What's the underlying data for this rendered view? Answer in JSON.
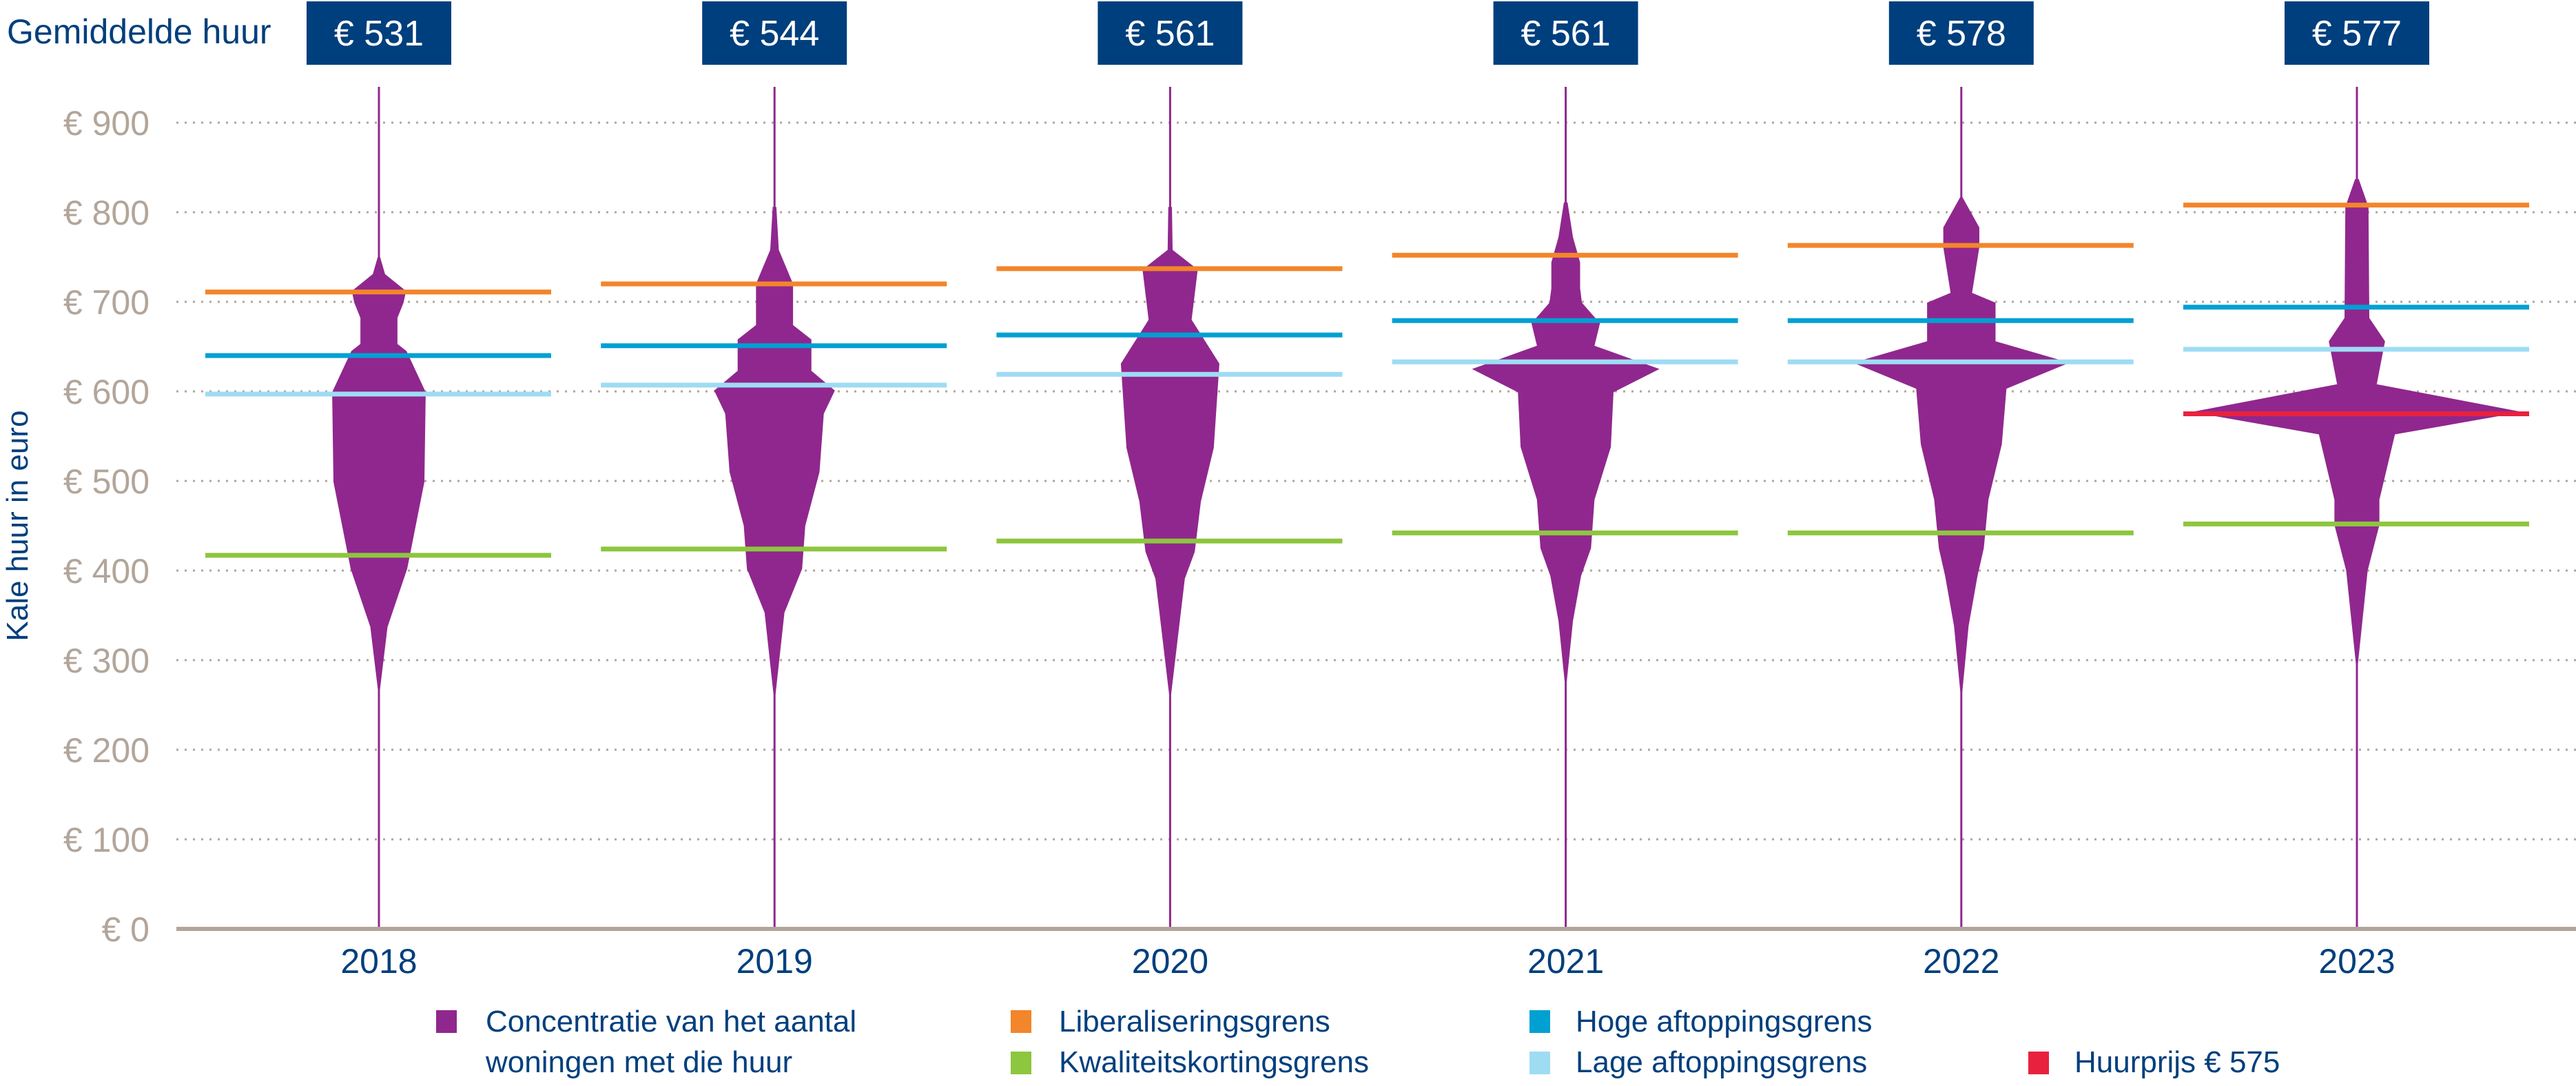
{
  "colors": {
    "violin": "#90278e",
    "liberalisering": "#f3852a",
    "hoge": "#00a0d2",
    "lage": "#9edcf4",
    "kwaliteit": "#8dc63f",
    "huurprijs": "#e8213f",
    "title_blue": "#003f7d",
    "axis_gray": "#b2a59a"
  },
  "chart_data": {
    "type": "violin",
    "title": "",
    "xlabel": "",
    "ylabel": "Kale huur in euro",
    "ylim": [
      0,
      900
    ],
    "yticks": [
      0,
      100,
      200,
      300,
      400,
      500,
      600,
      700,
      800,
      900
    ],
    "ytick_labels": [
      "€ 0",
      "€ 100",
      "€ 200",
      "€ 300",
      "€ 400",
      "€ 500",
      "€ 600",
      "€ 700",
      "€ 800",
      "€ 900"
    ],
    "grid": "horizontal-dotted",
    "categories": [
      "2018",
      "2019",
      "2020",
      "2021",
      "2022",
      "2023"
    ],
    "average_label": "Gemiddelde huur",
    "averages": [
      "€ 531",
      "€ 544",
      "€ 561",
      "€ 561",
      "€ 578",
      "€ 577"
    ],
    "violin_max_rent": 940,
    "violins": [
      [
        [
          750,
          0.007
        ],
        [
          731,
          0.037
        ],
        [
          712,
          0.164
        ],
        [
          699,
          0.149
        ],
        [
          682,
          0.112
        ],
        [
          653,
          0.112
        ],
        [
          645,
          0.167
        ],
        [
          599,
          0.283
        ],
        [
          499,
          0.275
        ],
        [
          402,
          0.171
        ],
        [
          337,
          0.052
        ],
        [
          267,
          0.004
        ]
      ],
      [
        [
          806,
          0.011
        ],
        [
          758,
          0.026
        ],
        [
          720,
          0.112
        ],
        [
          674,
          0.112
        ],
        [
          658,
          0.223
        ],
        [
          623,
          0.223
        ],
        [
          601,
          0.365
        ],
        [
          575,
          0.298
        ],
        [
          510,
          0.272
        ],
        [
          450,
          0.186
        ],
        [
          402,
          0.167
        ],
        [
          353,
          0.06
        ],
        [
          262,
          0.004
        ]
      ],
      [
        [
          806,
          0.011
        ],
        [
          758,
          0.015
        ],
        [
          736,
          0.167
        ],
        [
          680,
          0.13
        ],
        [
          631,
          0.298
        ],
        [
          537,
          0.264
        ],
        [
          477,
          0.186
        ],
        [
          421,
          0.149
        ],
        [
          391,
          0.089
        ],
        [
          262,
          0.004
        ]
      ],
      [
        [
          811,
          0.011
        ],
        [
          772,
          0.044
        ],
        [
          744,
          0.087
        ],
        [
          715,
          0.087
        ],
        [
          699,
          0.098
        ],
        [
          676,
          0.207
        ],
        [
          651,
          0.174
        ],
        [
          625,
          0.567
        ],
        [
          599,
          0.289
        ],
        [
          538,
          0.273
        ],
        [
          479,
          0.174
        ],
        [
          425,
          0.153
        ],
        [
          394,
          0.093
        ],
        [
          344,
          0.044
        ],
        [
          276,
          0.006
        ]
      ],
      [
        [
          817,
          0.006
        ],
        [
          783,
          0.109
        ],
        [
          761,
          0.109
        ],
        [
          710,
          0.065
        ],
        [
          699,
          0.207
        ],
        [
          656,
          0.207
        ],
        [
          632,
          0.654
        ],
        [
          603,
          0.273
        ],
        [
          541,
          0.245
        ],
        [
          479,
          0.164
        ],
        [
          425,
          0.136
        ],
        [
          394,
          0.098
        ],
        [
          338,
          0.044
        ],
        [
          265,
          0.004
        ]
      ],
      [
        [
          837,
          0.011
        ],
        [
          806,
          0.07
        ],
        [
          682,
          0.075
        ],
        [
          656,
          0.17
        ],
        [
          608,
          0.12
        ],
        [
          577,
          1.0
        ],
        [
          552,
          0.23
        ],
        [
          479,
          0.136
        ],
        [
          451,
          0.136
        ],
        [
          400,
          0.065
        ],
        [
          296,
          0.005
        ]
      ]
    ],
    "series": [
      {
        "name": "Liberaliseringsgrens",
        "key": "liberalisering",
        "values": [
          711,
          720,
          737,
          752,
          763,
          808
        ]
      },
      {
        "name": "Hoge aftoppingsgrens",
        "key": "hoge",
        "values": [
          640,
          651,
          663,
          679,
          679,
          694
        ]
      },
      {
        "name": "Lage aftoppingsgrens",
        "key": "lage",
        "values": [
          597,
          607,
          619,
          633,
          633,
          647
        ]
      },
      {
        "name": "Kwaliteitskortingsgrens",
        "key": "kwaliteit",
        "values": [
          417,
          424,
          433,
          442,
          442,
          452
        ]
      },
      {
        "name": "Huurprijs € 575",
        "key": "huurprijs",
        "values": [
          null,
          null,
          null,
          null,
          null,
          575
        ]
      }
    ],
    "legend": [
      {
        "label_line1": "Concentratie van het aantal",
        "label_line2": "woningen met die huur",
        "key": "violin"
      },
      {
        "label_line1": "Liberaliseringsgrens",
        "key": "liberalisering"
      },
      {
        "label_line1": "Hoge aftoppingsgrens",
        "key": "hoge"
      },
      {
        "label_line1": "Kwaliteitskortingsgrens",
        "key": "kwaliteit"
      },
      {
        "label_line1": "Lage aftoppingsgrens",
        "key": "lage"
      },
      {
        "label_line1": "Huurprijs € 575",
        "key": "huurprijs"
      }
    ],
    "legend_position": "bottom"
  }
}
